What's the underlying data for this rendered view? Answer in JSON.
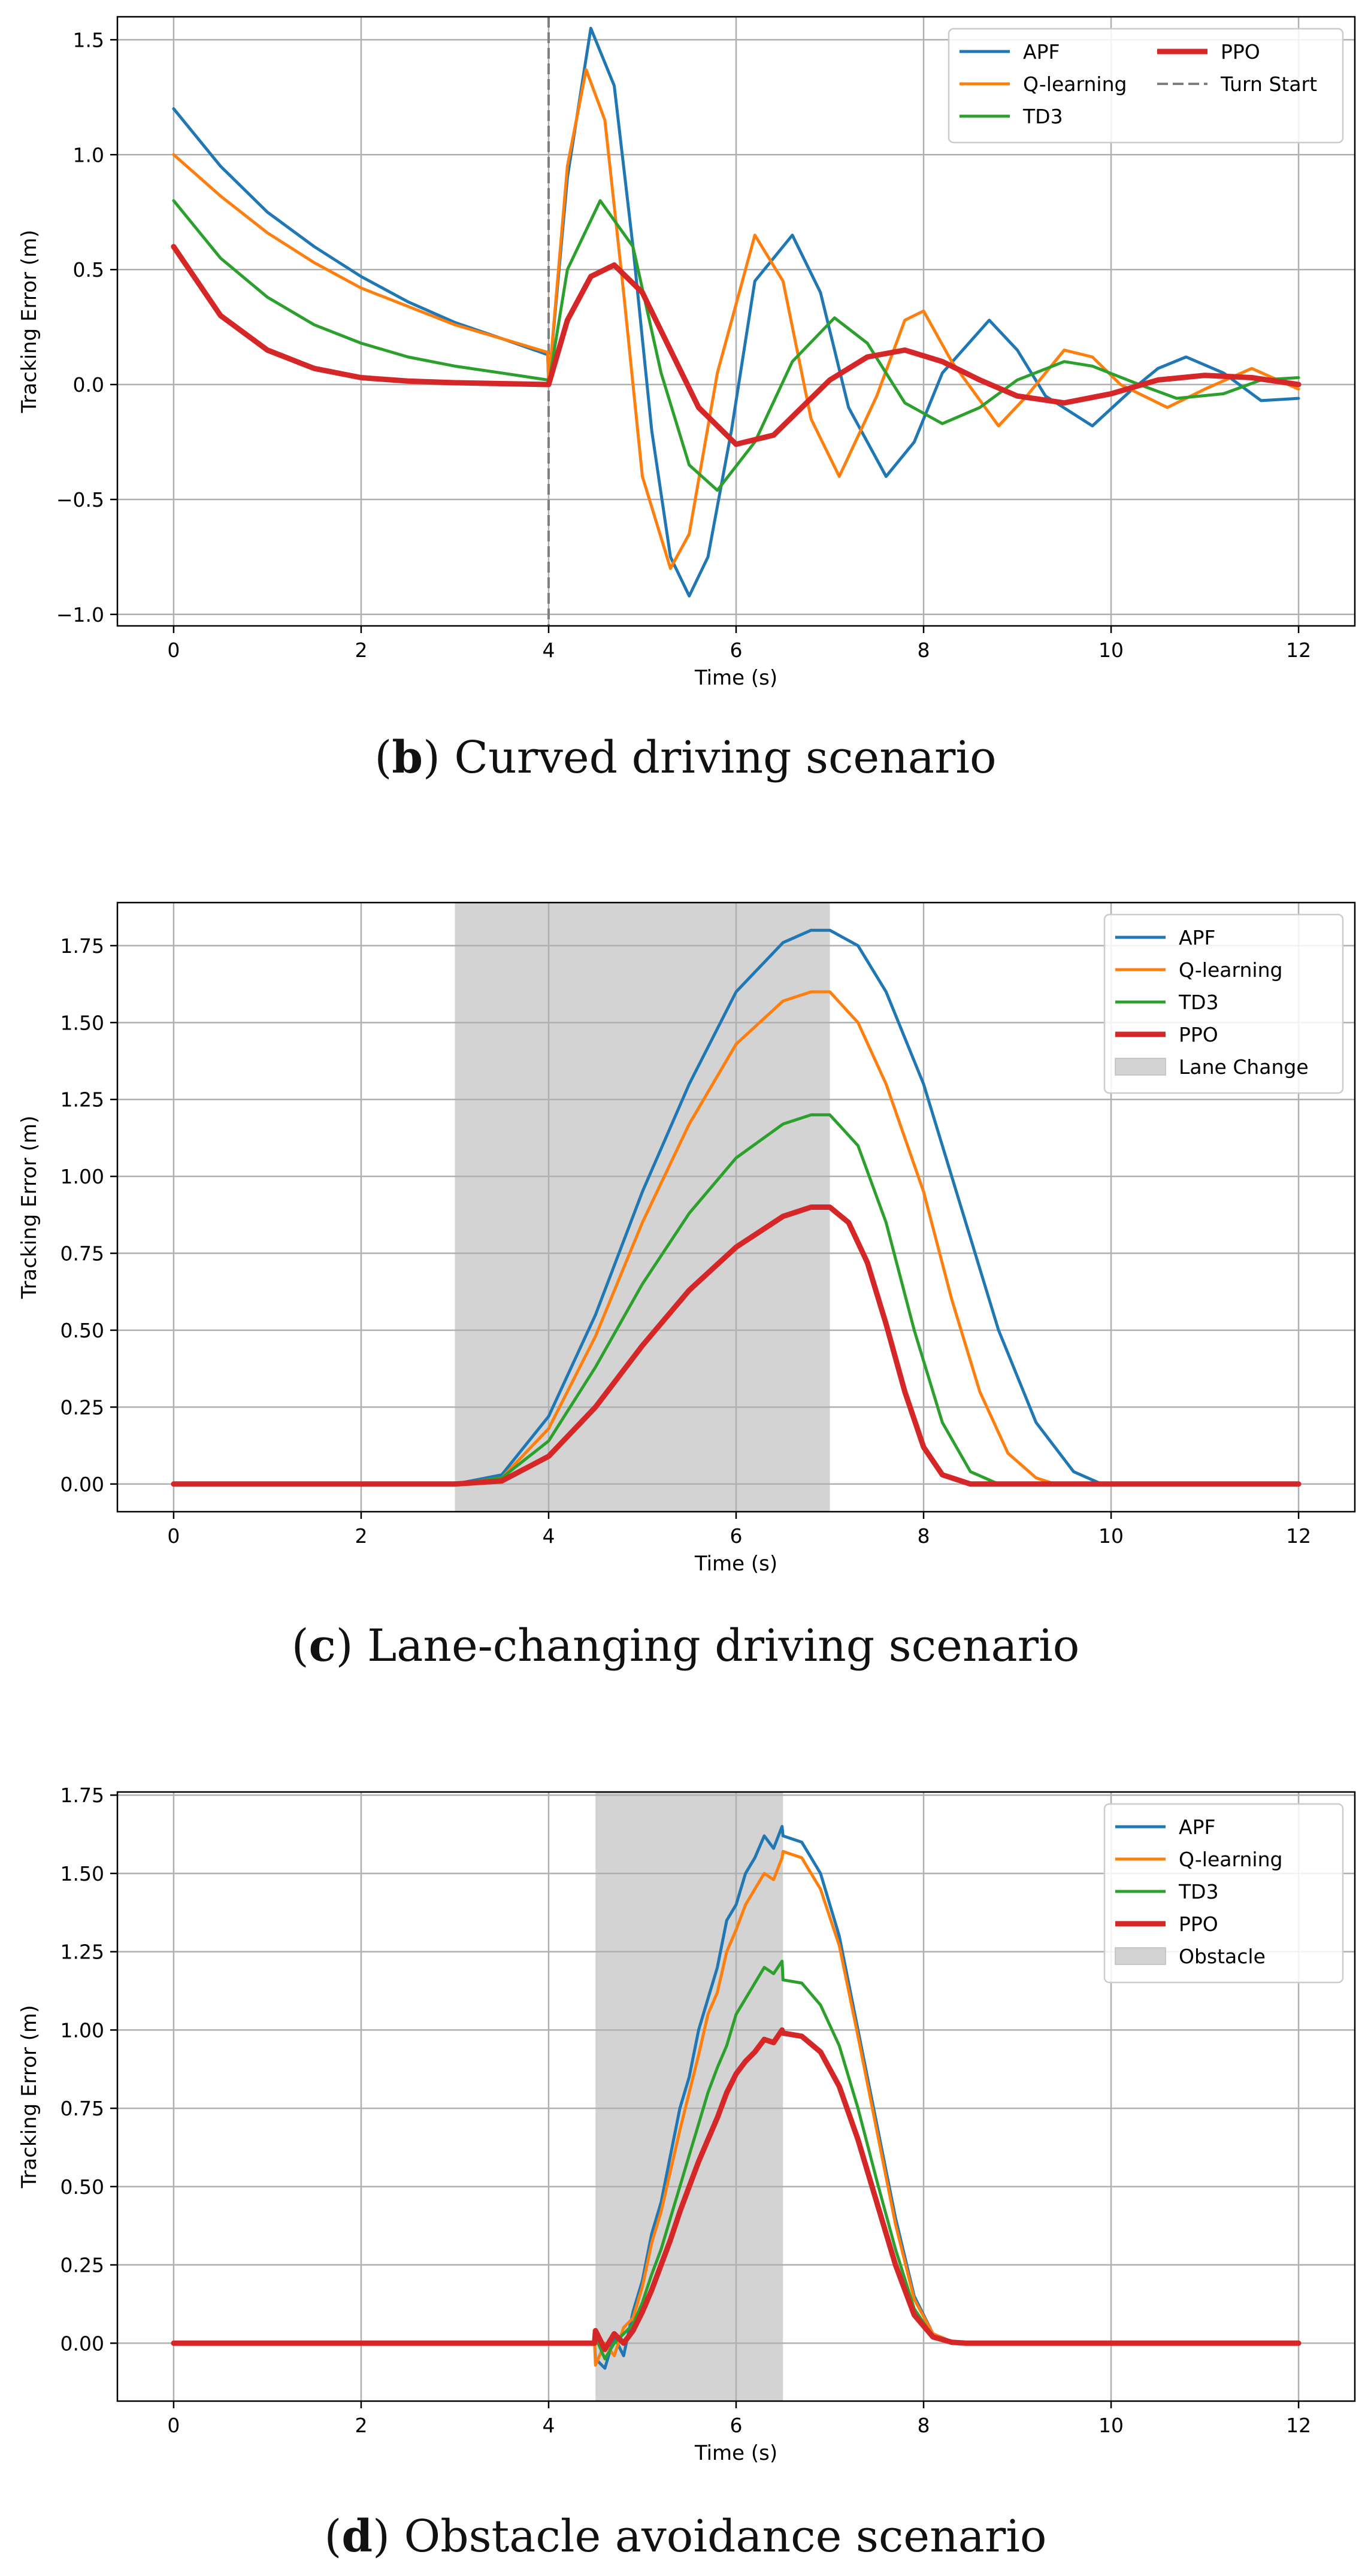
{
  "chart_data": [
    {
      "id": "b",
      "type": "line",
      "caption_letter": "b",
      "caption_text": "Curved driving scenario",
      "xlabel": "Time (s)",
      "ylabel": "Tracking Error (m)",
      "xlim": [
        -0.6,
        12.6
      ],
      "ylim": [
        -1.05,
        1.6
      ],
      "xticks": [
        0,
        2,
        4,
        6,
        8,
        10,
        12
      ],
      "yticks": [
        -1.0,
        -0.5,
        0.0,
        0.5,
        1.0,
        1.5
      ],
      "ytick_format": 1,
      "grid": true,
      "legend": {
        "placement": "top-right",
        "columns": 2
      },
      "markers": [
        {
          "type": "vline",
          "x": 4,
          "name": "Turn Start",
          "color": "#7f7f7f"
        }
      ],
      "series": [
        {
          "name": "APF",
          "color": "#1f77b4",
          "width": 5,
          "x": [
            0,
            0.5,
            1,
            1.5,
            2,
            2.5,
            3,
            3.5,
            3.99,
            4.0,
            4.2,
            4.45,
            4.7,
            4.9,
            5.1,
            5.3,
            5.5,
            5.7,
            5.95,
            6.2,
            6.6,
            6.9,
            7.2,
            7.6,
            7.9,
            8.2,
            8.7,
            9.0,
            9.3,
            9.8,
            10.2,
            10.5,
            10.8,
            11.2,
            11.6,
            12
          ],
          "y": [
            1.2,
            0.95,
            0.75,
            0.6,
            0.47,
            0.36,
            0.27,
            0.2,
            0.13,
            0.0,
            0.9,
            1.55,
            1.3,
            0.6,
            -0.2,
            -0.75,
            -0.92,
            -0.75,
            -0.2,
            0.45,
            0.65,
            0.4,
            -0.1,
            -0.4,
            -0.25,
            0.05,
            0.28,
            0.15,
            -0.05,
            -0.18,
            -0.03,
            0.07,
            0.12,
            0.05,
            -0.07,
            -0.06
          ]
        },
        {
          "name": "Q-learning",
          "color": "#ff7f0e",
          "width": 5,
          "x": [
            0,
            0.5,
            1,
            1.5,
            2,
            2.5,
            3,
            3.5,
            3.99,
            4.0,
            4.2,
            4.4,
            4.6,
            4.8,
            5.0,
            5.3,
            5.5,
            5.8,
            6.2,
            6.5,
            6.8,
            7.1,
            7.5,
            7.8,
            8.0,
            8.3,
            8.8,
            9.1,
            9.5,
            9.8,
            10.1,
            10.6,
            11.0,
            11.5,
            12
          ],
          "y": [
            1.0,
            0.82,
            0.66,
            0.53,
            0.42,
            0.34,
            0.26,
            0.2,
            0.14,
            0.0,
            0.95,
            1.37,
            1.15,
            0.4,
            -0.4,
            -0.8,
            -0.65,
            0.05,
            0.65,
            0.45,
            -0.15,
            -0.4,
            -0.05,
            0.28,
            0.32,
            0.1,
            -0.18,
            -0.05,
            0.15,
            0.12,
            0.0,
            -0.1,
            -0.02,
            0.07,
            -0.02
          ]
        },
        {
          "name": "TD3",
          "color": "#2ca02c",
          "width": 5,
          "x": [
            0,
            0.5,
            1,
            1.5,
            2,
            2.5,
            3,
            3.5,
            3.99,
            4.0,
            4.2,
            4.55,
            4.9,
            5.2,
            5.5,
            5.8,
            6.2,
            6.6,
            7.05,
            7.4,
            7.8,
            8.2,
            8.6,
            9.0,
            9.5,
            9.8,
            10.3,
            10.7,
            11.2,
            11.6,
            12
          ],
          "y": [
            0.8,
            0.55,
            0.38,
            0.26,
            0.18,
            0.12,
            0.08,
            0.05,
            0.02,
            0.0,
            0.5,
            0.8,
            0.6,
            0.05,
            -0.35,
            -0.46,
            -0.25,
            0.1,
            0.29,
            0.18,
            -0.08,
            -0.17,
            -0.1,
            0.02,
            0.1,
            0.08,
            0.0,
            -0.06,
            -0.04,
            0.02,
            0.03
          ]
        },
        {
          "name": "PPO",
          "color": "#d62728",
          "width": 9,
          "x": [
            0,
            0.5,
            1,
            1.5,
            2,
            2.5,
            3,
            3.5,
            3.99,
            4.0,
            4.2,
            4.45,
            4.7,
            5.0,
            5.3,
            5.6,
            6.0,
            6.4,
            6.7,
            7.0,
            7.4,
            7.8,
            8.2,
            8.6,
            9.0,
            9.5,
            10.0,
            10.5,
            11.0,
            11.5,
            12
          ],
          "y": [
            0.6,
            0.3,
            0.15,
            0.07,
            0.03,
            0.015,
            0.008,
            0.004,
            0.0,
            0.0,
            0.28,
            0.47,
            0.52,
            0.4,
            0.15,
            -0.1,
            -0.26,
            -0.22,
            -0.1,
            0.02,
            0.12,
            0.15,
            0.1,
            0.02,
            -0.05,
            -0.08,
            -0.04,
            0.02,
            0.04,
            0.03,
            0.0
          ]
        }
      ]
    },
    {
      "id": "c",
      "type": "line",
      "caption_letter": "c",
      "caption_text": "Lane-changing driving scenario",
      "xlabel": "Time (s)",
      "ylabel": "Tracking Error (m)",
      "xlim": [
        -0.6,
        12.6
      ],
      "ylim": [
        -0.09,
        1.89
      ],
      "xticks": [
        0,
        2,
        4,
        6,
        8,
        10,
        12
      ],
      "yticks": [
        0.0,
        0.25,
        0.5,
        0.75,
        1.0,
        1.25,
        1.5,
        1.75
      ],
      "ytick_format": 2,
      "grid": true,
      "legend": {
        "placement": "top-right",
        "columns": 1
      },
      "markers": [
        {
          "type": "span",
          "x0": 3,
          "x1": 7,
          "name": "Lane Change",
          "color": "#d3d3d3"
        }
      ],
      "series": [
        {
          "name": "APF",
          "color": "#1f77b4",
          "width": 5,
          "x": [
            0,
            3,
            3.5,
            4,
            4.5,
            5,
            5.5,
            6,
            6.5,
            6.8,
            7,
            7.3,
            7.6,
            8,
            8.4,
            8.8,
            9.2,
            9.6,
            9.9,
            12
          ],
          "y": [
            0,
            0,
            0.03,
            0.22,
            0.55,
            0.95,
            1.3,
            1.6,
            1.76,
            1.8,
            1.8,
            1.75,
            1.6,
            1.3,
            0.9,
            0.5,
            0.2,
            0.04,
            0,
            0
          ]
        },
        {
          "name": "Q-learning",
          "color": "#ff7f0e",
          "width": 5,
          "x": [
            0,
            3,
            3.5,
            4,
            4.5,
            5,
            5.5,
            6,
            6.5,
            6.8,
            7,
            7.3,
            7.6,
            8,
            8.3,
            8.6,
            8.9,
            9.2,
            9.4,
            12
          ],
          "y": [
            0,
            0,
            0.02,
            0.18,
            0.48,
            0.85,
            1.17,
            1.43,
            1.57,
            1.6,
            1.6,
            1.5,
            1.3,
            0.95,
            0.6,
            0.3,
            0.1,
            0.02,
            0,
            0
          ]
        },
        {
          "name": "TD3",
          "color": "#2ca02c",
          "width": 5,
          "x": [
            0,
            3,
            3.5,
            4,
            4.5,
            5,
            5.5,
            6,
            6.5,
            6.8,
            7,
            7.3,
            7.6,
            7.9,
            8.2,
            8.5,
            8.8,
            12
          ],
          "y": [
            0,
            0,
            0.02,
            0.14,
            0.38,
            0.65,
            0.88,
            1.06,
            1.17,
            1.2,
            1.2,
            1.1,
            0.85,
            0.5,
            0.2,
            0.04,
            0,
            0
          ]
        },
        {
          "name": "PPO",
          "color": "#d62728",
          "width": 9,
          "x": [
            0,
            3,
            3.5,
            4,
            4.5,
            5,
            5.5,
            6,
            6.5,
            6.8,
            7,
            7.2,
            7.4,
            7.6,
            7.8,
            8.0,
            8.2,
            8.5,
            12
          ],
          "y": [
            0,
            0,
            0.01,
            0.09,
            0.25,
            0.45,
            0.63,
            0.77,
            0.87,
            0.9,
            0.9,
            0.85,
            0.72,
            0.52,
            0.3,
            0.12,
            0.03,
            0,
            0
          ]
        }
      ]
    },
    {
      "id": "d",
      "type": "line",
      "caption_letter": "d",
      "caption_text": "Obstacle avoidance scenario",
      "xlabel": "Time (s)",
      "ylabel": "Tracking Error (m)",
      "xlim": [
        -0.6,
        12.6
      ],
      "ylim": [
        -0.185,
        1.76
      ],
      "xticks": [
        0,
        2,
        4,
        6,
        8,
        10,
        12
      ],
      "yticks": [
        0.0,
        0.25,
        0.5,
        0.75,
        1.0,
        1.25,
        1.5,
        1.75
      ],
      "ytick_format": 2,
      "grid": true,
      "legend": {
        "placement": "top-right",
        "columns": 1
      },
      "markers": [
        {
          "type": "span",
          "x0": 4.5,
          "x1": 6.5,
          "name": "Obstacle",
          "color": "#d3d3d3"
        }
      ],
      "series": [
        {
          "name": "APF",
          "color": "#1f77b4",
          "width": 5,
          "x": [
            0,
            4.49,
            4.5,
            4.6,
            4.7,
            4.8,
            4.9,
            5.0,
            5.1,
            5.2,
            5.3,
            5.4,
            5.5,
            5.6,
            5.7,
            5.8,
            5.9,
            6.0,
            6.1,
            6.2,
            6.3,
            6.4,
            6.49,
            6.5,
            6.7,
            6.9,
            7.1,
            7.3,
            7.5,
            7.7,
            7.9,
            8.1,
            8.3,
            8.45,
            12
          ],
          "y": [
            0,
            0,
            -0.05,
            -0.08,
            0.02,
            -0.04,
            0.1,
            0.2,
            0.35,
            0.45,
            0.6,
            0.75,
            0.85,
            1.0,
            1.1,
            1.2,
            1.35,
            1.4,
            1.5,
            1.55,
            1.62,
            1.58,
            1.65,
            1.62,
            1.6,
            1.5,
            1.3,
            1.0,
            0.7,
            0.4,
            0.15,
            0.03,
            0.005,
            0,
            0
          ]
        },
        {
          "name": "Q-learning",
          "color": "#ff7f0e",
          "width": 5,
          "x": [
            0,
            4.49,
            4.5,
            4.6,
            4.7,
            4.8,
            4.9,
            5.0,
            5.1,
            5.2,
            5.3,
            5.4,
            5.5,
            5.6,
            5.7,
            5.8,
            5.9,
            6.0,
            6.1,
            6.2,
            6.3,
            6.4,
            6.49,
            6.5,
            6.7,
            6.9,
            7.1,
            7.3,
            7.5,
            7.7,
            7.9,
            8.1,
            8.3,
            8.45,
            12
          ],
          "y": [
            0,
            0,
            -0.07,
            0.0,
            -0.04,
            0.05,
            0.08,
            0.18,
            0.32,
            0.42,
            0.55,
            0.68,
            0.8,
            0.92,
            1.05,
            1.12,
            1.25,
            1.32,
            1.4,
            1.45,
            1.5,
            1.48,
            1.55,
            1.57,
            1.55,
            1.45,
            1.27,
            0.98,
            0.68,
            0.38,
            0.14,
            0.03,
            0.005,
            0,
            0
          ]
        },
        {
          "name": "TD3",
          "color": "#2ca02c",
          "width": 5,
          "x": [
            0,
            4.49,
            4.5,
            4.6,
            4.7,
            4.8,
            4.9,
            5.0,
            5.1,
            5.2,
            5.3,
            5.4,
            5.5,
            5.6,
            5.7,
            5.8,
            5.9,
            6.0,
            6.1,
            6.2,
            6.3,
            6.4,
            6.49,
            6.5,
            6.7,
            6.9,
            7.1,
            7.3,
            7.5,
            7.7,
            7.9,
            8.1,
            8.3,
            8.45,
            12
          ],
          "y": [
            0,
            0,
            0.02,
            -0.05,
            0.0,
            0.03,
            0.06,
            0.13,
            0.22,
            0.3,
            0.4,
            0.5,
            0.6,
            0.7,
            0.8,
            0.88,
            0.95,
            1.05,
            1.1,
            1.15,
            1.2,
            1.18,
            1.22,
            1.16,
            1.15,
            1.08,
            0.95,
            0.75,
            0.52,
            0.3,
            0.11,
            0.02,
            0.004,
            0,
            0
          ]
        },
        {
          "name": "PPO",
          "color": "#d62728",
          "width": 9,
          "x": [
            0,
            4.49,
            4.5,
            4.6,
            4.7,
            4.8,
            4.9,
            5.0,
            5.1,
            5.2,
            5.3,
            5.4,
            5.5,
            5.6,
            5.7,
            5.8,
            5.9,
            6.0,
            6.1,
            6.2,
            6.3,
            6.4,
            6.49,
            6.5,
            6.7,
            6.9,
            7.1,
            7.3,
            7.5,
            7.7,
            7.9,
            8.1,
            8.3,
            8.45,
            12
          ],
          "y": [
            0,
            0,
            0.04,
            -0.02,
            0.03,
            0.0,
            0.04,
            0.1,
            0.17,
            0.25,
            0.33,
            0.42,
            0.5,
            0.58,
            0.65,
            0.72,
            0.8,
            0.86,
            0.9,
            0.93,
            0.97,
            0.96,
            1.0,
            0.99,
            0.98,
            0.93,
            0.82,
            0.65,
            0.45,
            0.25,
            0.09,
            0.02,
            0.003,
            0,
            0
          ]
        }
      ]
    }
  ]
}
